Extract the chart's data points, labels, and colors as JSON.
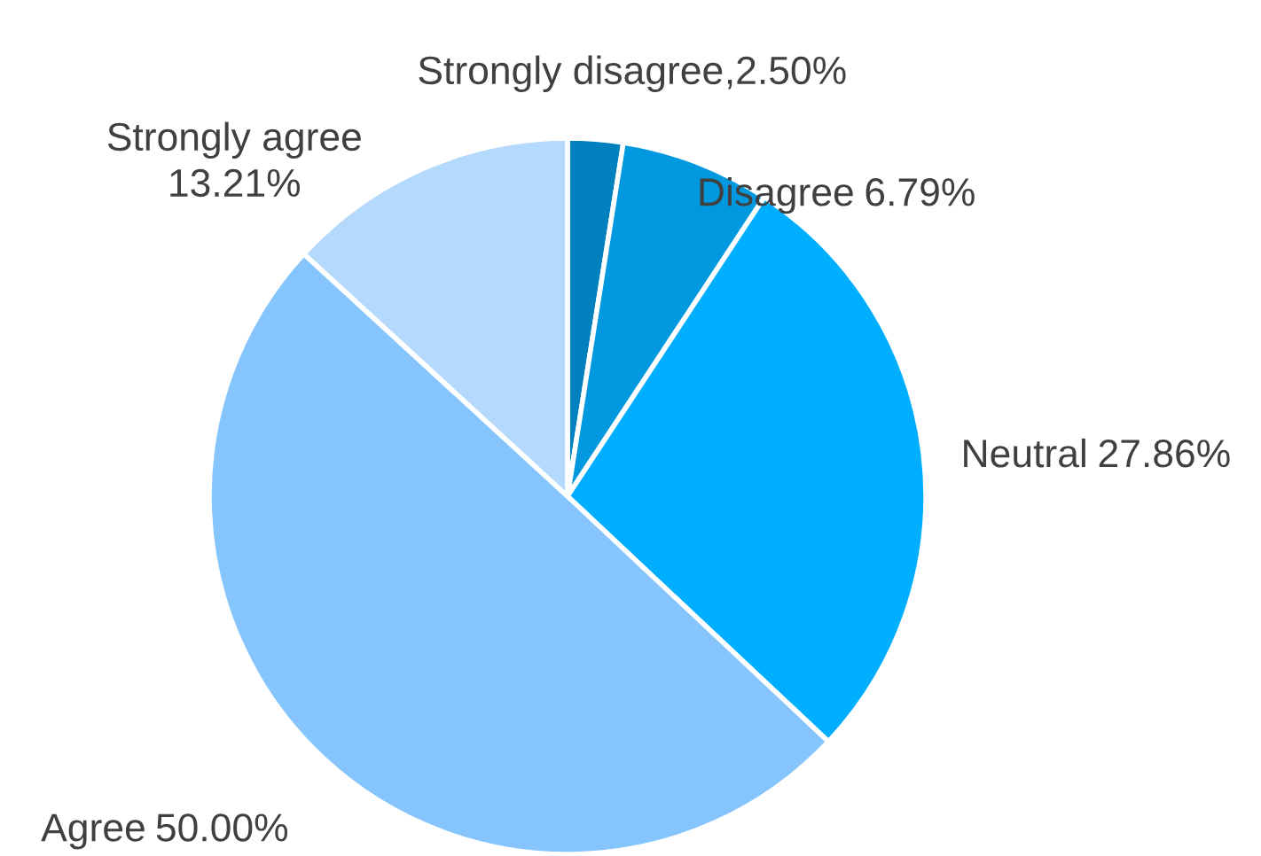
{
  "chart_data": {
    "type": "pie",
    "categories": [
      "Strongly disagree",
      "Disagree",
      "Neutral",
      "Agree",
      "Strongly agree"
    ],
    "values": [
      2.5,
      6.79,
      27.86,
      50.0,
      13.21
    ],
    "colors": [
      "#0080bd",
      "#0099e0",
      "#00aeff",
      "#85c4fd",
      "#b5d9fc"
    ],
    "value_labels": [
      ",2.50%",
      "6.79%",
      "27.86%",
      "50.00%",
      "13.21%"
    ]
  }
}
